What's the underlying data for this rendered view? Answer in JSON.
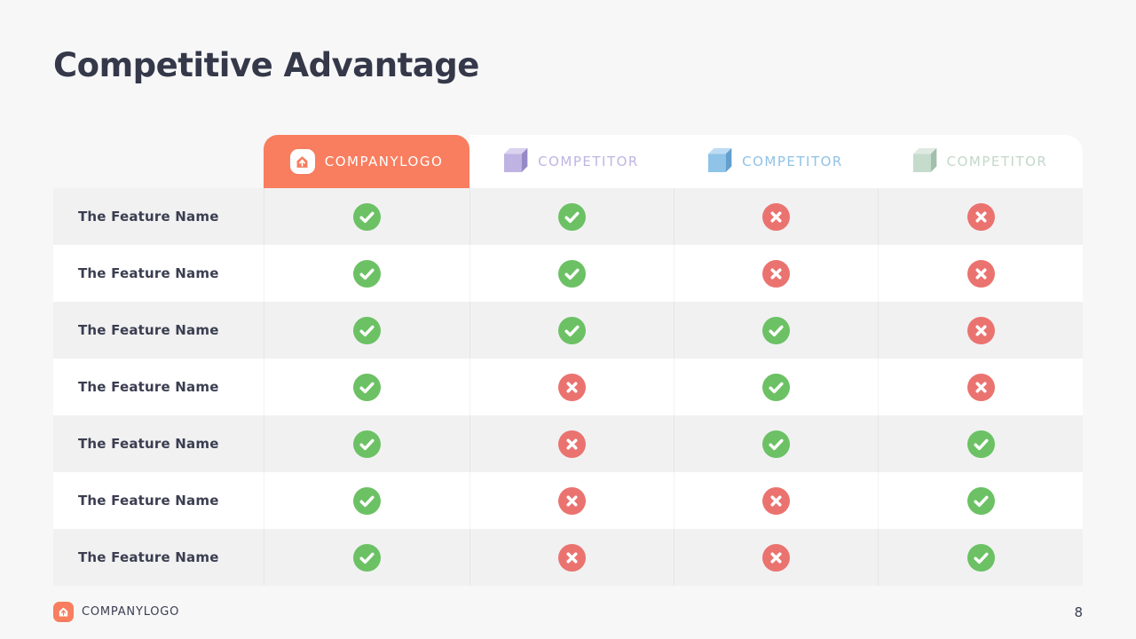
{
  "page": {
    "title": "Competitive Advantage",
    "page_number": "8",
    "background_color": "#f7f7f8",
    "title_color": "#343849"
  },
  "footer": {
    "logo_label": "COMPANYLOGO",
    "logo_icon": "companylogo-house-arrow-icon",
    "logo_color": "#f87e5f"
  },
  "table": {
    "accent_color": "#f87e5f",
    "row_shade_color": "#f1f1f2",
    "feature_text_color": "#3a3e50",
    "columns": [
      {
        "id": "companylogo",
        "label": "COMPANYLOGO",
        "kind": "company",
        "icon": "companylogo-house-arrow-icon",
        "tab_color": "#f87e5f",
        "text_color": "#ffffff"
      },
      {
        "id": "competitor-1",
        "label": "COMPETITOR",
        "kind": "competitor",
        "icon": "cube-icon",
        "text_color": "#c0b5e3",
        "cube": {
          "top": "#d9d3f0",
          "front": "#bfb3e3",
          "side": "#958ac6"
        }
      },
      {
        "id": "competitor-2",
        "label": "COMPETITOR",
        "kind": "competitor",
        "icon": "cube-icon",
        "text_color": "#90c2e6",
        "cube": {
          "top": "#bddcf4",
          "front": "#8fc3e8",
          "side": "#639fcf"
        }
      },
      {
        "id": "competitor-3",
        "label": "COMPETITOR",
        "kind": "competitor",
        "icon": "cube-icon",
        "text_color": "#c3d8ca",
        "cube": {
          "top": "#dfeae2",
          "front": "#c5dccd",
          "side": "#a2bfab"
        }
      }
    ],
    "icons": {
      "check": {
        "name": "check-circle-icon",
        "color": "#6cc164"
      },
      "cross": {
        "name": "cross-circle-icon",
        "color": "#ea7370"
      }
    },
    "rows": [
      {
        "feature": "The Feature Name",
        "values": [
          true,
          true,
          false,
          false
        ]
      },
      {
        "feature": "The Feature Name",
        "values": [
          true,
          true,
          false,
          false
        ]
      },
      {
        "feature": "The Feature Name",
        "values": [
          true,
          true,
          true,
          false
        ]
      },
      {
        "feature": "The Feature Name",
        "values": [
          true,
          false,
          true,
          false
        ]
      },
      {
        "feature": "The Feature Name",
        "values": [
          true,
          false,
          true,
          true
        ]
      },
      {
        "feature": "The Feature Name",
        "values": [
          true,
          false,
          false,
          true
        ]
      },
      {
        "feature": "The Feature Name",
        "values": [
          true,
          false,
          false,
          true
        ]
      }
    ]
  }
}
